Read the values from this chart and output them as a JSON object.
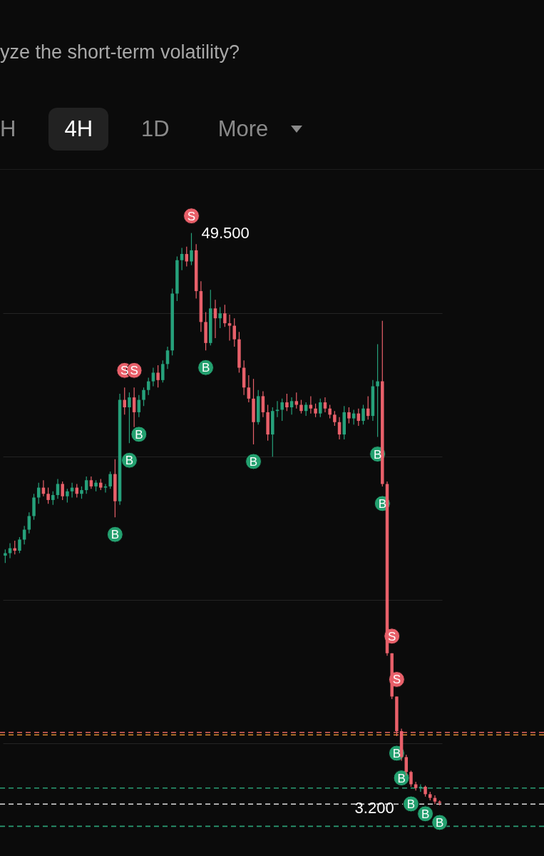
{
  "chart_data": {
    "type": "candlestick",
    "title": "yze the short-term volatility?",
    "categories": [
      null,
      null,
      null,
      null,
      null,
      null,
      null,
      null,
      null,
      null,
      null,
      null,
      null,
      null,
      null,
      null,
      null,
      null,
      null,
      null,
      null,
      null,
      null,
      null,
      null,
      null,
      null,
      null,
      null,
      null,
      null,
      null,
      null,
      null,
      null,
      null,
      null,
      null,
      null,
      null,
      null,
      null,
      null,
      null,
      null,
      null,
      null,
      null,
      null,
      null,
      null,
      null,
      null,
      null,
      null,
      null,
      null,
      null,
      null,
      null,
      null,
      null,
      null,
      null,
      null,
      null,
      null,
      null,
      null,
      null,
      null,
      null,
      null,
      null,
      null,
      null,
      null,
      null,
      null,
      null,
      null,
      null,
      null,
      null,
      null,
      null,
      null,
      null,
      null,
      null,
      null,
      null
    ],
    "ohlc": [
      [
        23.4,
        23.9,
        22.8,
        23.6
      ],
      [
        23.6,
        24.4,
        23.2,
        24.0
      ],
      [
        24.0,
        24.6,
        23.5,
        23.8
      ],
      [
        23.8,
        24.9,
        23.6,
        24.7
      ],
      [
        24.7,
        25.8,
        24.3,
        25.5
      ],
      [
        25.5,
        26.9,
        25.2,
        26.6
      ],
      [
        26.6,
        28.4,
        26.3,
        28.1
      ],
      [
        28.1,
        29.3,
        27.6,
        28.9
      ],
      [
        28.9,
        29.5,
        28.2,
        28.4
      ],
      [
        28.4,
        28.9,
        27.6,
        27.9
      ],
      [
        27.9,
        28.6,
        27.5,
        28.3
      ],
      [
        28.3,
        29.6,
        28.0,
        29.2
      ],
      [
        29.2,
        29.4,
        27.9,
        28.2
      ],
      [
        28.2,
        28.8,
        27.7,
        28.6
      ],
      [
        28.6,
        29.3,
        28.1,
        28.9
      ],
      [
        28.9,
        29.2,
        28.1,
        28.4
      ],
      [
        28.4,
        29.0,
        28.0,
        28.7
      ],
      [
        28.7,
        29.8,
        28.4,
        29.5
      ],
      [
        29.5,
        29.8,
        28.8,
        29.0
      ],
      [
        29.0,
        29.5,
        28.6,
        29.3
      ],
      [
        29.3,
        29.6,
        28.7,
        28.9
      ],
      [
        28.9,
        29.2,
        28.5,
        29.0
      ],
      [
        29.0,
        30.2,
        28.8,
        30.0
      ],
      [
        30.0,
        31.2,
        26.5,
        27.8
      ],
      [
        27.8,
        36.5,
        27.5,
        36.0
      ],
      [
        36.0,
        37.0,
        34.8,
        35.4
      ],
      [
        35.4,
        36.6,
        32.5,
        36.2
      ],
      [
        36.2,
        37.0,
        33.8,
        35.0
      ],
      [
        35.0,
        36.4,
        34.6,
        36.0
      ],
      [
        36.0,
        37.0,
        35.5,
        36.8
      ],
      [
        36.8,
        37.8,
        36.4,
        37.5
      ],
      [
        37.5,
        38.6,
        37.1,
        38.2
      ],
      [
        38.2,
        38.8,
        37.0,
        37.6
      ],
      [
        37.6,
        39.2,
        37.4,
        38.9
      ],
      [
        38.9,
        40.3,
        38.5,
        40.0
      ],
      [
        40.0,
        45.0,
        39.6,
        44.6
      ],
      [
        44.6,
        47.6,
        44.0,
        47.3
      ],
      [
        47.3,
        48.3,
        46.5,
        47.8
      ],
      [
        47.8,
        48.4,
        46.8,
        47.2
      ],
      [
        47.2,
        49.5,
        46.9,
        48.1
      ],
      [
        48.1,
        48.6,
        44.2,
        44.8
      ],
      [
        44.8,
        45.6,
        41.5,
        42.3
      ],
      [
        42.3,
        43.1,
        40.0,
        40.6
      ],
      [
        40.6,
        44.9,
        40.4,
        43.4
      ],
      [
        43.4,
        44.1,
        41.0,
        42.6
      ],
      [
        42.6,
        43.5,
        41.8,
        43.0
      ],
      [
        43.0,
        43.7,
        41.9,
        42.2
      ],
      [
        42.2,
        42.9,
        40.8,
        42.0
      ],
      [
        42.0,
        42.6,
        40.3,
        40.9
      ],
      [
        40.9,
        41.5,
        38.2,
        38.6
      ],
      [
        38.6,
        39.2,
        36.4,
        37.0
      ],
      [
        37.0,
        38.0,
        35.8,
        36.1
      ],
      [
        36.1,
        37.7,
        32.4,
        34.2
      ],
      [
        34.2,
        36.8,
        34.0,
        36.3
      ],
      [
        36.3,
        36.7,
        34.6,
        35.0
      ],
      [
        35.0,
        35.6,
        32.7,
        33.2
      ],
      [
        33.2,
        35.4,
        31.4,
        35.1
      ],
      [
        35.1,
        35.9,
        34.6,
        35.2
      ],
      [
        35.2,
        36.1,
        34.3,
        35.8
      ],
      [
        35.8,
        36.5,
        35.1,
        35.4
      ],
      [
        35.4,
        36.2,
        34.8,
        35.9
      ],
      [
        35.9,
        36.6,
        35.3,
        35.6
      ],
      [
        35.6,
        36.0,
        34.9,
        35.1
      ],
      [
        35.1,
        35.8,
        34.7,
        35.6
      ],
      [
        35.6,
        36.3,
        34.9,
        35.3
      ],
      [
        35.3,
        35.7,
        34.6,
        34.9
      ],
      [
        34.9,
        36.1,
        34.6,
        35.8
      ],
      [
        35.8,
        36.2,
        35.0,
        35.3
      ],
      [
        35.3,
        35.6,
        34.5,
        34.8
      ],
      [
        34.8,
        35.1,
        33.9,
        34.2
      ],
      [
        34.2,
        34.6,
        32.8,
        33.2
      ],
      [
        33.2,
        35.5,
        32.8,
        35.0
      ],
      [
        35.0,
        35.4,
        34.1,
        34.5
      ],
      [
        34.5,
        35.2,
        34.0,
        34.9
      ],
      [
        34.9,
        35.3,
        33.9,
        34.3
      ],
      [
        34.3,
        35.6,
        34.0,
        35.3
      ],
      [
        35.3,
        36.3,
        34.4,
        34.7
      ],
      [
        34.7,
        37.6,
        34.3,
        37.1
      ],
      [
        37.1,
        40.5,
        33.0,
        37.5
      ],
      [
        37.5,
        42.4,
        29.0,
        29.2
      ],
      [
        29.2,
        29.4,
        15.3,
        15.5
      ],
      [
        15.5,
        15.5,
        11.8,
        12.0
      ],
      [
        12.0,
        12.0,
        8.8,
        9.2
      ],
      [
        9.2,
        9.4,
        6.8,
        7.1
      ],
      [
        7.1,
        7.3,
        5.6,
        5.9
      ],
      [
        5.9,
        6.0,
        4.7,
        4.9
      ],
      [
        4.9,
        5.1,
        4.4,
        4.6
      ],
      [
        4.6,
        4.9,
        4.3,
        4.7
      ],
      [
        4.7,
        4.8,
        3.9,
        4.1
      ],
      [
        4.1,
        4.3,
        3.6,
        3.8
      ],
      [
        3.8,
        4.0,
        3.3,
        3.5
      ],
      [
        3.5,
        3.6,
        3.2,
        3.4
      ]
    ],
    "colors": [
      "#26a17b",
      "#26a17b",
      "#e8606a",
      "#26a17b",
      "#26a17b",
      "#26a17b",
      "#26a17b",
      "#26a17b",
      "#e8606a",
      "#e8606a",
      "#26a17b",
      "#26a17b",
      "#e8606a",
      "#26a17b",
      "#26a17b",
      "#e8606a",
      "#26a17b",
      "#26a17b",
      "#e8606a",
      "#26a17b",
      "#e8606a",
      "#26a17b",
      "#26a17b",
      "#e8606a",
      "#26a17b",
      "#e8606a",
      "#26a17b",
      "#e8606a",
      "#26a17b",
      "#26a17b",
      "#26a17b",
      "#26a17b",
      "#e8606a",
      "#26a17b",
      "#26a17b",
      "#26a17b",
      "#26a17b",
      "#26a17b",
      "#e8606a",
      "#26a17b",
      "#e8606a",
      "#e8606a",
      "#e8606a",
      "#26a17b",
      "#e8606a",
      "#26a17b",
      "#e8606a",
      "#e8606a",
      "#e8606a",
      "#e8606a",
      "#e8606a",
      "#e8606a",
      "#e8606a",
      "#26a17b",
      "#e8606a",
      "#e8606a",
      "#26a17b",
      "#26a17b",
      "#26a17b",
      "#e8606a",
      "#26a17b",
      "#e8606a",
      "#e8606a",
      "#26a17b",
      "#e8606a",
      "#e8606a",
      "#26a17b",
      "#e8606a",
      "#e8606a",
      "#e8606a",
      "#e8606a",
      "#26a17b",
      "#e8606a",
      "#26a17b",
      "#e8606a",
      "#26a17b",
      "#e8606a",
      "#26a17b",
      "#26a17b",
      "#e8606a",
      "#e8606a",
      "#e8606a",
      "#e8606a",
      "#e8606a",
      "#e8606a",
      "#e8606a",
      "#e8606a",
      "#26a17b",
      "#e8606a",
      "#e8606a",
      "#e8606a",
      "#e8606a"
    ],
    "value_labels": [
      null,
      null,
      null,
      null,
      null,
      null,
      null,
      null,
      null,
      null,
      null,
      null,
      null,
      null,
      null,
      null,
      null,
      null,
      null,
      null,
      null,
      null,
      null,
      null,
      null,
      null,
      null,
      null,
      null,
      null,
      null,
      null,
      null,
      null,
      null,
      null,
      null,
      null,
      null,
      "49.500",
      null,
      null,
      null,
      null,
      null,
      null,
      null,
      null,
      null,
      null,
      null,
      null,
      null,
      null,
      null,
      null,
      null,
      null,
      null,
      null,
      null,
      null,
      null,
      null,
      null,
      null,
      null,
      null,
      null,
      null,
      null,
      null,
      null,
      null,
      null,
      null,
      null,
      null,
      null,
      null,
      null,
      null,
      null,
      null,
      null,
      null,
      null,
      null,
      null,
      null,
      null,
      "3.200"
    ],
    "ylim": [
      -0.9,
      54.5
    ],
    "yticks": [
      {
        "value": 43.0,
        "label": null
      },
      {
        "value": 31.4,
        "label": null
      },
      {
        "value": 19.8,
        "label": null
      },
      {
        "value": 8.2,
        "label": null
      }
    ],
    "grid": "y",
    "ref_lines": [
      {
        "axis": "y",
        "value": 9.1,
        "color": "#e0655f",
        "line_style": "dashed"
      },
      {
        "axis": "y",
        "value": 8.9,
        "color": "#d9892f",
        "line_style": "dashed"
      },
      {
        "axis": "y",
        "value": 4.6,
        "color": "#2a9d74",
        "line_style": "dashed"
      },
      {
        "axis": "y",
        "value": 1.5,
        "color": "#2a9d74",
        "line_style": "dashed"
      },
      {
        "axis": "y",
        "value": 3.3,
        "color": "#dddddd",
        "line_style": "dashed"
      }
    ],
    "annotations": [
      "H",
      "4H",
      "1D",
      "More",
      {
        "text": "B",
        "y": 26.5
      },
      {
        "text": "S",
        "y": 37.0
      },
      {
        "text": "B",
        "y": 32.5
      },
      {
        "text": "S",
        "y": 37.0
      },
      {
        "text": "B",
        "y": 34.6
      },
      {
        "text": "S",
        "y": 49.5
      },
      {
        "text": "B",
        "y": 40.0
      },
      {
        "text": "B",
        "y": 32.4
      },
      {
        "text": "B",
        "y": 33.0
      },
      {
        "text": "B",
        "y": 29.0
      },
      {
        "text": "S",
        "y": 15.5
      },
      {
        "text": "S",
        "y": 12.0
      },
      {
        "text": "B",
        "y": 8.8
      },
      {
        "text": "B",
        "y": 6.8
      },
      {
        "text": "B",
        "y": 4.7
      },
      {
        "text": "B",
        "y": 3.9
      },
      {
        "text": "B",
        "y": 3.2
      }
    ]
  }
}
